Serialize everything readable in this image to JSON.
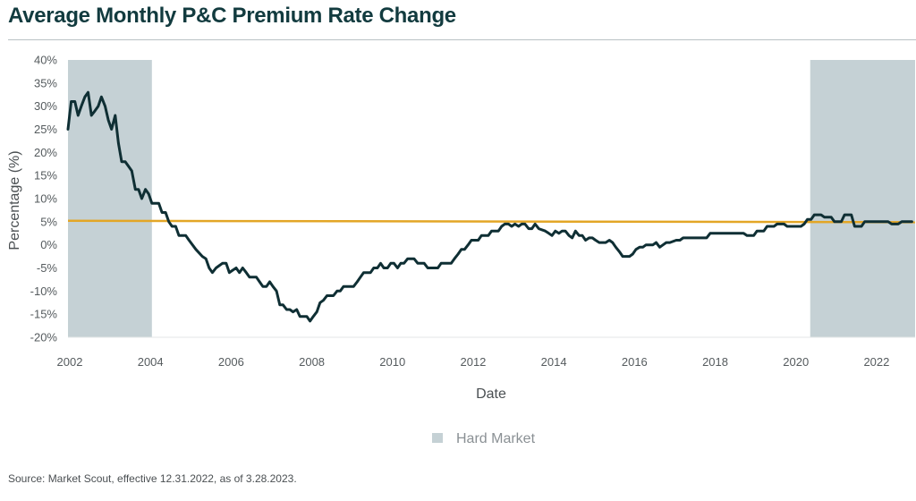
{
  "page": {
    "title": "Average Monthly P&C Premium Rate Change",
    "source": "Source: Market Scout, effective 12.31.2022, as of 3.28.2023."
  },
  "chart_data": {
    "type": "line",
    "title": "Average Monthly P&C Premium Rate Change",
    "xlabel": "Date",
    "ylabel": "Percentage (%)",
    "xlim": [
      2002.0,
      2023.0
    ],
    "ylim": [
      -20,
      40
    ],
    "x_ticks": [
      2002,
      2004,
      2006,
      2008,
      2010,
      2012,
      2014,
      2016,
      2018,
      2020,
      2022
    ],
    "x_tick_labels": [
      "2002",
      "2004",
      "2006",
      "2008",
      "2010",
      "2012",
      "2014",
      "2016",
      "2018",
      "2020",
      "2022"
    ],
    "y_ticks": [
      40,
      35,
      30,
      25,
      20,
      15,
      10,
      5,
      0,
      -5,
      -10,
      -15,
      -20
    ],
    "y_tick_labels": [
      "40%",
      "35%",
      "30%",
      "25%",
      "20%",
      "15%",
      "10%",
      "5%",
      "0%",
      "-5%",
      "-10%",
      "-15%",
      "-20%"
    ],
    "grid": false,
    "legend": {
      "placement": "bottom-center",
      "entries": [
        "Hard Market"
      ]
    },
    "shaded_regions": [
      {
        "name": "Hard Market",
        "x_start": 2002.0,
        "x_end": 2004.08,
        "color": "#c5d1d5"
      },
      {
        "name": "Hard Market",
        "x_start": 2020.4,
        "x_end": 2023.0,
        "color": "#c5d1d5"
      }
    ],
    "reference_line": {
      "y_start": 5.2,
      "y_end": 4.9,
      "color": "#e3a626"
    },
    "series": [
      {
        "color": "#0f2f34",
        "points": [
          [
            2002.0,
            25
          ],
          [
            2002.08,
            31
          ],
          [
            2002.17,
            31
          ],
          [
            2002.25,
            28
          ],
          [
            2002.33,
            30
          ],
          [
            2002.42,
            32
          ],
          [
            2002.5,
            33
          ],
          [
            2002.58,
            28
          ],
          [
            2002.67,
            29
          ],
          [
            2002.75,
            30
          ],
          [
            2002.83,
            32
          ],
          [
            2002.92,
            30
          ],
          [
            2003.0,
            27
          ],
          [
            2003.08,
            25
          ],
          [
            2003.17,
            28
          ],
          [
            2003.25,
            22
          ],
          [
            2003.33,
            18
          ],
          [
            2003.42,
            18
          ],
          [
            2003.5,
            17
          ],
          [
            2003.58,
            16
          ],
          [
            2003.67,
            12
          ],
          [
            2003.75,
            12
          ],
          [
            2003.83,
            10
          ],
          [
            2003.92,
            12
          ],
          [
            2004.0,
            11
          ],
          [
            2004.08,
            9
          ],
          [
            2004.25,
            9
          ],
          [
            2004.33,
            7
          ],
          [
            2004.42,
            7
          ],
          [
            2004.5,
            5
          ],
          [
            2004.58,
            4
          ],
          [
            2004.67,
            4
          ],
          [
            2004.75,
            2
          ],
          [
            2004.92,
            2
          ],
          [
            2005.0,
            1
          ],
          [
            2005.17,
            -1
          ],
          [
            2005.33,
            -2.5
          ],
          [
            2005.42,
            -3
          ],
          [
            2005.5,
            -5
          ],
          [
            2005.58,
            -6
          ],
          [
            2005.67,
            -5
          ],
          [
            2005.75,
            -4.5
          ],
          [
            2005.83,
            -4
          ],
          [
            2005.92,
            -4
          ],
          [
            2006.0,
            -6
          ],
          [
            2006.08,
            -5.5
          ],
          [
            2006.17,
            -5
          ],
          [
            2006.25,
            -6
          ],
          [
            2006.33,
            -5
          ],
          [
            2006.42,
            -6
          ],
          [
            2006.5,
            -7
          ],
          [
            2006.67,
            -7
          ],
          [
            2006.75,
            -8
          ],
          [
            2006.83,
            -9
          ],
          [
            2006.92,
            -9
          ],
          [
            2007.0,
            -8
          ],
          [
            2007.08,
            -9
          ],
          [
            2007.17,
            -10
          ],
          [
            2007.25,
            -13
          ],
          [
            2007.33,
            -13
          ],
          [
            2007.42,
            -14
          ],
          [
            2007.5,
            -14
          ],
          [
            2007.58,
            -14.5
          ],
          [
            2007.67,
            -14
          ],
          [
            2007.75,
            -15.5
          ],
          [
            2007.83,
            -15.5
          ],
          [
            2007.92,
            -15.5
          ],
          [
            2008.0,
            -16.5
          ],
          [
            2008.08,
            -15.5
          ],
          [
            2008.17,
            -14.5
          ],
          [
            2008.25,
            -12.5
          ],
          [
            2008.33,
            -12
          ],
          [
            2008.42,
            -11
          ],
          [
            2008.58,
            -11
          ],
          [
            2008.67,
            -10
          ],
          [
            2008.75,
            -10
          ],
          [
            2008.83,
            -9
          ],
          [
            2008.92,
            -9
          ],
          [
            2009.08,
            -9
          ],
          [
            2009.17,
            -8
          ],
          [
            2009.25,
            -7
          ],
          [
            2009.33,
            -6
          ],
          [
            2009.42,
            -6
          ],
          [
            2009.5,
            -6
          ],
          [
            2009.58,
            -5
          ],
          [
            2009.67,
            -5
          ],
          [
            2009.75,
            -4
          ],
          [
            2009.83,
            -5
          ],
          [
            2009.92,
            -5
          ],
          [
            2010.0,
            -4
          ],
          [
            2010.08,
            -4
          ],
          [
            2010.17,
            -5
          ],
          [
            2010.25,
            -4
          ],
          [
            2010.33,
            -4
          ],
          [
            2010.42,
            -3
          ],
          [
            2010.58,
            -3
          ],
          [
            2010.67,
            -4
          ],
          [
            2010.83,
            -4
          ],
          [
            2010.92,
            -5
          ],
          [
            2011.17,
            -5
          ],
          [
            2011.25,
            -4
          ],
          [
            2011.5,
            -4
          ],
          [
            2011.58,
            -3
          ],
          [
            2011.67,
            -2
          ],
          [
            2011.75,
            -1
          ],
          [
            2011.83,
            -1
          ],
          [
            2011.92,
            0
          ],
          [
            2012.0,
            1
          ],
          [
            2012.17,
            1
          ],
          [
            2012.25,
            2
          ],
          [
            2012.42,
            2
          ],
          [
            2012.5,
            3
          ],
          [
            2012.58,
            3
          ],
          [
            2012.67,
            3
          ],
          [
            2012.75,
            4
          ],
          [
            2012.83,
            4.5
          ],
          [
            2012.92,
            4.5
          ],
          [
            2013.0,
            4
          ],
          [
            2013.08,
            4.5
          ],
          [
            2013.17,
            4
          ],
          [
            2013.25,
            4.5
          ],
          [
            2013.33,
            4.5
          ],
          [
            2013.42,
            3.5
          ],
          [
            2013.5,
            3.5
          ],
          [
            2013.58,
            4.5
          ],
          [
            2013.67,
            3.5
          ],
          [
            2013.83,
            3
          ],
          [
            2013.92,
            2.5
          ],
          [
            2014.0,
            2
          ],
          [
            2014.08,
            3
          ],
          [
            2014.17,
            2.5
          ],
          [
            2014.25,
            3
          ],
          [
            2014.33,
            3
          ],
          [
            2014.42,
            2
          ],
          [
            2014.5,
            1.5
          ],
          [
            2014.58,
            3
          ],
          [
            2014.67,
            2
          ],
          [
            2014.75,
            2
          ],
          [
            2014.83,
            1
          ],
          [
            2014.92,
            1.5
          ],
          [
            2015.0,
            1.5
          ],
          [
            2015.08,
            1
          ],
          [
            2015.17,
            0.5
          ],
          [
            2015.25,
            0.5
          ],
          [
            2015.33,
            0.5
          ],
          [
            2015.42,
            1
          ],
          [
            2015.5,
            0.5
          ],
          [
            2015.58,
            -0.5
          ],
          [
            2015.67,
            -1.5
          ],
          [
            2015.75,
            -2.5
          ],
          [
            2015.83,
            -2.5
          ],
          [
            2015.92,
            -2.5
          ],
          [
            2016.0,
            -2
          ],
          [
            2016.08,
            -1
          ],
          [
            2016.17,
            -0.5
          ],
          [
            2016.25,
            -0.5
          ],
          [
            2016.33,
            0
          ],
          [
            2016.42,
            0
          ],
          [
            2016.5,
            0
          ],
          [
            2016.58,
            0.5
          ],
          [
            2016.67,
            -0.5
          ],
          [
            2016.75,
            0
          ],
          [
            2016.83,
            0.5
          ],
          [
            2016.92,
            0.5
          ],
          [
            2017.08,
            1
          ],
          [
            2017.17,
            1
          ],
          [
            2017.25,
            1.5
          ],
          [
            2017.33,
            1.5
          ],
          [
            2017.42,
            1.5
          ],
          [
            2017.83,
            1.5
          ],
          [
            2017.92,
            2.5
          ],
          [
            2018.0,
            2.5
          ],
          [
            2018.75,
            2.5
          ],
          [
            2018.83,
            2
          ],
          [
            2018.92,
            2
          ],
          [
            2019.0,
            2
          ],
          [
            2019.08,
            3
          ],
          [
            2019.25,
            3
          ],
          [
            2019.33,
            4
          ],
          [
            2019.5,
            4
          ],
          [
            2019.58,
            4.5
          ],
          [
            2019.75,
            4.5
          ],
          [
            2019.83,
            4
          ],
          [
            2020.0,
            4
          ],
          [
            2020.17,
            4
          ],
          [
            2020.25,
            4.5
          ],
          [
            2020.33,
            5.5
          ],
          [
            2020.42,
            5.5
          ],
          [
            2020.5,
            6.5
          ],
          [
            2020.67,
            6.5
          ],
          [
            2020.75,
            6
          ],
          [
            2020.92,
            6
          ],
          [
            2021.0,
            5
          ],
          [
            2021.17,
            5
          ],
          [
            2021.25,
            6.5
          ],
          [
            2021.42,
            6.5
          ],
          [
            2021.5,
            4
          ],
          [
            2021.67,
            4
          ],
          [
            2021.75,
            5
          ],
          [
            2022.33,
            5
          ],
          [
            2022.42,
            4.5
          ],
          [
            2022.58,
            4.5
          ],
          [
            2022.67,
            5
          ],
          [
            2022.92,
            5
          ]
        ]
      }
    ]
  }
}
